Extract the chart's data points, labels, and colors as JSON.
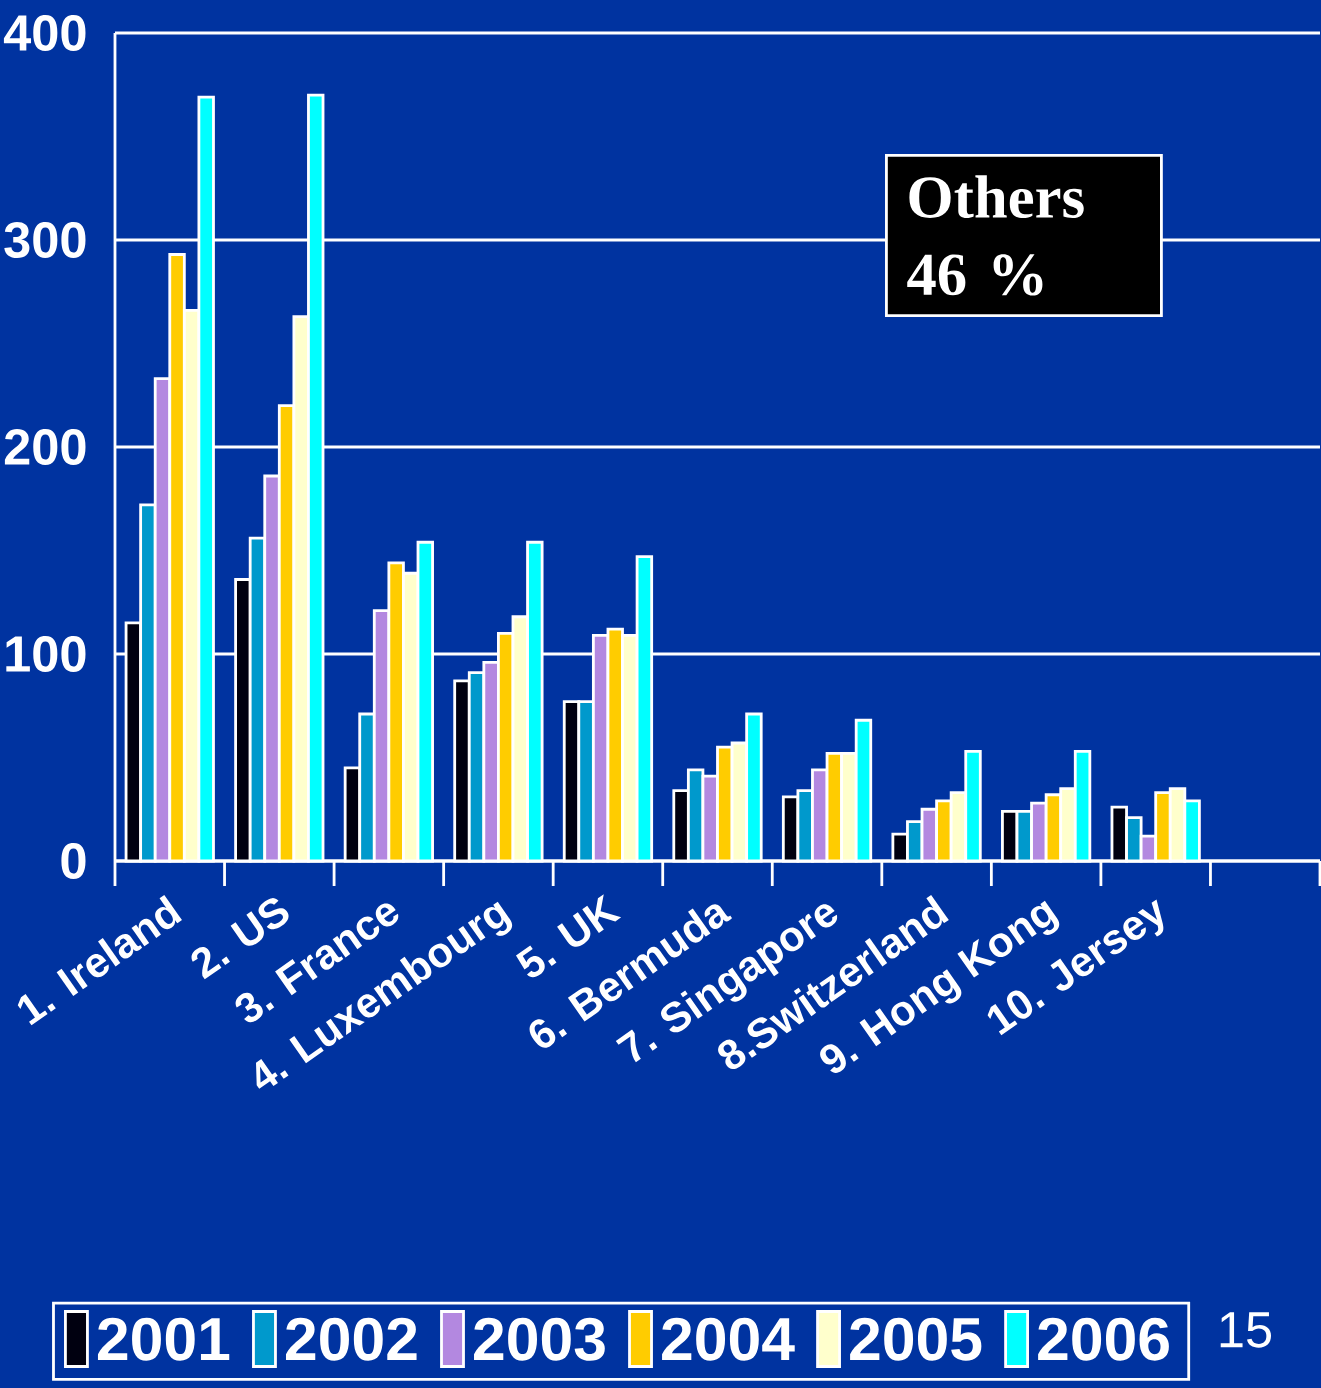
{
  "chart_data": {
    "type": "bar",
    "categories": [
      "1. Ireland",
      "2. US",
      "3. France",
      "4. Luxembourg",
      "5. UK",
      "6. Bermuda",
      "7. Singapore",
      "8.Switzerland",
      "9. Hong Kong",
      "10. Jersey"
    ],
    "series": [
      {
        "name": "2001",
        "color": "#000010",
        "values": [
          115,
          136,
          45,
          87,
          77,
          34,
          31,
          13,
          24,
          26
        ]
      },
      {
        "name": "2002",
        "color": "#0099cc",
        "values": [
          172,
          156,
          71,
          91,
          77,
          44,
          34,
          19,
          24,
          21
        ]
      },
      {
        "name": "2003",
        "color": "#b388e0",
        "values": [
          233,
          186,
          121,
          96,
          109,
          41,
          44,
          25,
          28,
          12
        ]
      },
      {
        "name": "2004",
        "color": "#ffcc00",
        "values": [
          293,
          220,
          144,
          110,
          112,
          55,
          52,
          29,
          32,
          33
        ]
      },
      {
        "name": "2005",
        "color": "#ffffcc",
        "values": [
          266,
          263,
          139,
          118,
          109,
          57,
          52,
          33,
          35,
          35
        ]
      },
      {
        "name": "2006",
        "color": "#00ffff",
        "values": [
          369,
          370,
          154,
          154,
          147,
          71,
          68,
          53,
          53,
          29
        ]
      }
    ],
    "ylim": [
      0,
      400
    ],
    "yticks": [
      0,
      100,
      200,
      300,
      400
    ],
    "grid": "y",
    "legend": "bottom",
    "annotations": [
      "Others 46 %",
      "15"
    ]
  }
}
